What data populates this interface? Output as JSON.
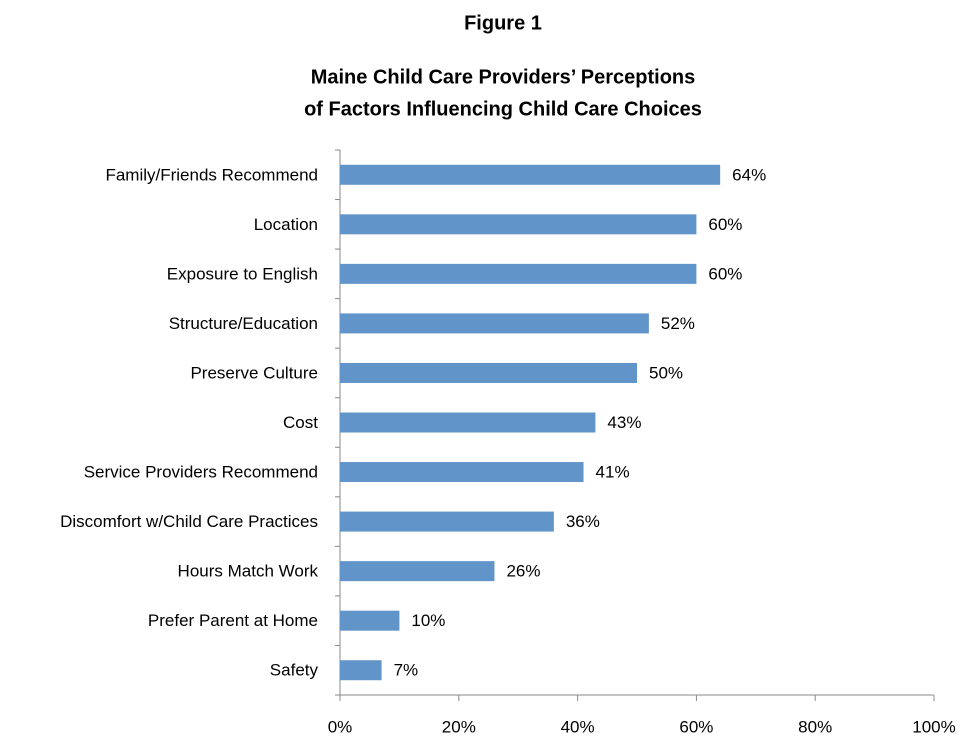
{
  "chart_data": {
    "type": "barh",
    "figure_label": "Figure 1",
    "title": [
      "Maine Child Care Providers’ Perceptions",
      "of Factors Influencing Child Care Choices"
    ],
    "categories": [
      "Family/Friends Recommend",
      "Location",
      "Exposure to English",
      "Structure/Education",
      "Preserve Culture",
      "Cost",
      "Service Providers Recommend",
      "Discomfort w/Child Care Practices",
      "Hours Match Work",
      "Prefer Parent at Home",
      "Safety"
    ],
    "values": [
      64,
      60,
      60,
      52,
      50,
      43,
      41,
      36,
      26,
      10,
      7
    ],
    "value_labels": [
      "64%",
      "60%",
      "60%",
      "52%",
      "50%",
      "43%",
      "41%",
      "36%",
      "26%",
      "10%",
      "7%"
    ],
    "color": "#6194c9",
    "xlim": [
      0,
      100
    ],
    "xticks": [
      {
        "value": 0,
        "label": "0%"
      },
      {
        "value": 20,
        "label": "20%"
      },
      {
        "value": 40,
        "label": "40%"
      },
      {
        "value": 60,
        "label": "60%"
      },
      {
        "value": 80,
        "label": "80%"
      },
      {
        "value": 100,
        "label": "100%"
      }
    ]
  }
}
